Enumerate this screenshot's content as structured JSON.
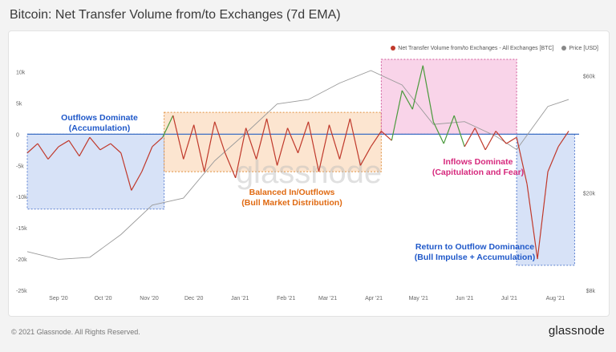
{
  "title": "Bitcoin: Net Transfer Volume from/to Exchanges (7d EMA)",
  "footer": {
    "copyright": "© 2021 Glassnode. All Rights Reserved.",
    "brand": "glassnode"
  },
  "watermark": "glassnode",
  "colors": {
    "netflow_pos": "#4a9a3c",
    "netflow_neg": "#c0392b",
    "price": "#9a9a9a",
    "zero_line": "#3d6fc4",
    "blue_box": "#c9d8f4",
    "orange_box": "#fbdcc0",
    "pink_box": "#f7c5e2"
  },
  "legend": [
    {
      "label": "Net Transfer Volume from/to Exchanges - All Exchanges [BTC]",
      "color": "#c0392b"
    },
    {
      "label": "Price [USD]",
      "color": "#888888"
    }
  ],
  "annotations": [
    {
      "lines": [
        "Outflows Dominate",
        "(Accumulation)"
      ],
      "color": "#1f58c9"
    },
    {
      "lines": [
        "Balanced In/Outflows",
        "(Bull Market Distribution)"
      ],
      "color": "#e06a12"
    },
    {
      "lines": [
        "Inflows Dominate",
        "(Capitulation and Fear)"
      ],
      "color": "#d6297d"
    },
    {
      "lines": [
        "Return to Outflow Dominance",
        "(Bull Impulse + Accumulation)"
      ],
      "color": "#1f58c9"
    }
  ],
  "chart_data": {
    "type": "line",
    "title": "Bitcoin: Net Transfer Volume from/to Exchanges (7d EMA)",
    "x_ticks": [
      "Sep '20",
      "Oct '20",
      "Nov '20",
      "Dec '20",
      "Jan '21",
      "Feb '21",
      "Mar '21",
      "Apr '21",
      "May '21",
      "Jun '21",
      "Jul '21",
      "Aug '21"
    ],
    "y_left": {
      "ticks": [
        "10k",
        "5k",
        "0",
        "-5k",
        "-10k",
        "-15k",
        "-20k",
        "-25k"
      ],
      "range": [
        -25000,
        12000
      ]
    },
    "y_right": {
      "ticks": [
        "$60k",
        "$20k",
        "$8k"
      ],
      "scale": "log"
    },
    "series": [
      {
        "name": "Net Transfer Volume from/to Exchanges - All Exchanges [BTC]",
        "x": [
          "2020-08-25",
          "2020-09-01",
          "2020-09-08",
          "2020-09-15",
          "2020-09-22",
          "2020-09-29",
          "2020-10-06",
          "2020-10-13",
          "2020-10-20",
          "2020-10-27",
          "2020-11-03",
          "2020-11-10",
          "2020-11-17",
          "2020-11-24",
          "2020-12-01",
          "2020-12-08",
          "2020-12-15",
          "2020-12-22",
          "2020-12-29",
          "2021-01-05",
          "2021-01-12",
          "2021-01-19",
          "2021-01-26",
          "2021-02-02",
          "2021-02-09",
          "2021-02-16",
          "2021-02-23",
          "2021-03-02",
          "2021-03-09",
          "2021-03-16",
          "2021-03-23",
          "2021-03-30",
          "2021-04-06",
          "2021-04-13",
          "2021-04-20",
          "2021-04-27",
          "2021-05-04",
          "2021-05-11",
          "2021-05-18",
          "2021-05-25",
          "2021-06-01",
          "2021-06-08",
          "2021-06-15",
          "2021-06-22",
          "2021-06-29",
          "2021-07-06",
          "2021-07-13",
          "2021-07-20",
          "2021-07-27",
          "2021-08-03",
          "2021-08-10",
          "2021-08-17",
          "2021-08-24"
        ],
        "values": [
          -3000,
          -1500,
          -4000,
          -2000,
          -1000,
          -3500,
          -500,
          -2500,
          -1500,
          -3000,
          -9000,
          -6000,
          -2000,
          -500,
          3000,
          -4000,
          1500,
          -6000,
          2000,
          -3000,
          -7000,
          1000,
          -4000,
          2500,
          -5000,
          1000,
          -3000,
          2000,
          -6000,
          1500,
          -4000,
          2500,
          -5000,
          -2000,
          500,
          -1000,
          7000,
          4000,
          11000,
          2000,
          -1500,
          3000,
          -2000,
          1000,
          -2500,
          500,
          -1500,
          -500,
          -8000,
          -20000,
          -6000,
          -2000,
          500
        ]
      },
      {
        "name": "Price [USD]",
        "x": [
          "2020-08-25",
          "2020-09-15",
          "2020-10-06",
          "2020-10-27",
          "2020-11-17",
          "2020-12-08",
          "2020-12-29",
          "2021-01-19",
          "2021-02-09",
          "2021-03-02",
          "2021-03-23",
          "2021-04-13",
          "2021-05-04",
          "2021-05-25",
          "2021-06-15",
          "2021-07-06",
          "2021-07-20",
          "2021-08-10",
          "2021-08-24"
        ],
        "values": [
          11500,
          10700,
          10900,
          13500,
          17800,
          19000,
          27000,
          35000,
          46000,
          48000,
          56000,
          63000,
          55000,
          38000,
          39000,
          34000,
          30000,
          45000,
          48000
        ]
      }
    ]
  }
}
